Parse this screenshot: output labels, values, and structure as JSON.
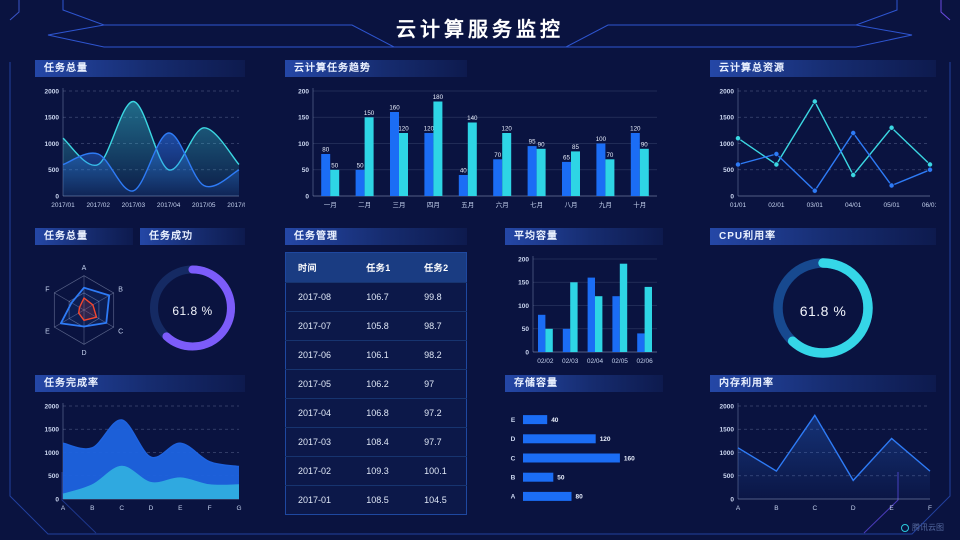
{
  "title": "云计算服务监控",
  "watermark": "腾讯云图",
  "colors": {
    "blue": "#1B6DF5",
    "cyan": "#2ED5E5",
    "line_blue": "#2E7BF6",
    "line_cyan": "#3BD7E2",
    "purple": "#7C5CFA",
    "red": "#F5472E",
    "frame_blue": "#2E55D0",
    "background": "#0A1340"
  },
  "panels": {
    "task_total_top": {
      "title": "任务总量"
    },
    "task_trend": {
      "title": "云计算任务趋势"
    },
    "total_resource": {
      "title": "云计算总资源"
    },
    "task_total_radar": {
      "title": "任务总量"
    },
    "task_success": {
      "title": "任务成功",
      "value": "61.8 %"
    },
    "task_manage": {
      "title": "任务管理"
    },
    "avg_capacity": {
      "title": "平均容量"
    },
    "cpu_usage": {
      "title": "CPU利用率",
      "value": "61.8 %"
    },
    "task_completion": {
      "title": "任务完成率"
    },
    "storage": {
      "title": "存储容量"
    },
    "memory": {
      "title": "内存利用率"
    }
  },
  "table": {
    "columns": [
      "时间",
      "任务1",
      "任务2"
    ],
    "rows": [
      [
        "2017-08",
        "106.7",
        "99.8"
      ],
      [
        "2017-07",
        "105.8",
        "98.7"
      ],
      [
        "2017-06",
        "106.1",
        "98.2"
      ],
      [
        "2017-05",
        "106.2",
        "97"
      ],
      [
        "2017-04",
        "106.8",
        "97.2"
      ],
      [
        "2017-03",
        "108.4",
        "97.7"
      ],
      [
        "2017-02",
        "109.3",
        "100.1"
      ],
      [
        "2017-01",
        "108.5",
        "104.5"
      ]
    ]
  },
  "chart_data": [
    {
      "id": "task-total-area",
      "type": "area",
      "smooth": true,
      "title": "任务总量",
      "x": [
        "2017/01",
        "2017/02",
        "2017/03",
        "2017/04",
        "2017/05",
        "2017/06"
      ],
      "ylim": [
        0,
        2000
      ],
      "yticks": [
        0,
        500,
        1000,
        1500,
        2000
      ],
      "grid": "dashed",
      "series": [
        {
          "name": "cyan",
          "color": "#3BD7E2",
          "fill_opacity": [
            0.45,
            0.05
          ],
          "values": [
            1100,
            600,
            1800,
            500,
            1300,
            600
          ]
        },
        {
          "name": "blue",
          "color": "#2E7BF6",
          "fill_opacity": [
            0.55,
            0.08
          ],
          "values": [
            600,
            800,
            100,
            1200,
            200,
            500
          ]
        }
      ]
    },
    {
      "id": "task-trend-bar",
      "type": "bar",
      "title": "云计算任务趋势",
      "categories": [
        "一月",
        "二月",
        "三月",
        "四月",
        "五月",
        "六月",
        "七月",
        "八月",
        "九月",
        "十月"
      ],
      "ylim": [
        0,
        200
      ],
      "yticks": [
        0,
        50,
        100,
        150,
        200
      ],
      "grid": "solid",
      "show_labels": true,
      "series": [
        {
          "name": "blue",
          "color": "#1B6DF5",
          "values": [
            80,
            50,
            160,
            120,
            40,
            70,
            95,
            65,
            100,
            120
          ]
        },
        {
          "name": "cyan",
          "color": "#2ED5E5",
          "values": [
            50,
            150,
            120,
            180,
            140,
            120,
            90,
            85,
            70,
            90
          ]
        }
      ]
    },
    {
      "id": "total-resource-line",
      "type": "line",
      "title": "云计算总资源",
      "x": [
        "01/01",
        "02/01",
        "03/01",
        "04/01",
        "05/01",
        "06/01"
      ],
      "ylim": [
        0,
        2000
      ],
      "yticks": [
        0,
        500,
        1000,
        1500,
        2000
      ],
      "grid": "dashed",
      "markers": true,
      "series": [
        {
          "name": "cyan",
          "color": "#3BD7E2",
          "values": [
            1100,
            600,
            1800,
            400,
            1300,
            600
          ]
        },
        {
          "name": "blue",
          "color": "#2E7BF6",
          "values": [
            600,
            800,
            100,
            1200,
            200,
            500
          ]
        }
      ]
    },
    {
      "id": "task-radar",
      "type": "radar",
      "title": "任务总量",
      "axes": [
        "A",
        "B",
        "C",
        "D",
        "E",
        "F"
      ],
      "max": 100,
      "series": [
        {
          "name": "blue",
          "color": "#2E7BF6",
          "values": [
            65,
            85,
            75,
            48,
            78,
            42
          ]
        },
        {
          "name": "red",
          "color": "#F5472E",
          "values": [
            35,
            30,
            42,
            30,
            18,
            15
          ]
        }
      ]
    },
    {
      "id": "success-donut",
      "type": "donut",
      "title": "任务成功",
      "value": 61.8,
      "color": "#7C5CFA",
      "track": "#152A63"
    },
    {
      "id": "avg-capacity-bar",
      "type": "bar",
      "title": "平均容量",
      "categories": [
        "02/02",
        "02/03",
        "02/04",
        "02/05",
        "02/06"
      ],
      "ylim": [
        0,
        200
      ],
      "yticks": [
        0,
        50,
        100,
        150,
        200
      ],
      "grid": "solid",
      "show_labels": false,
      "series": [
        {
          "name": "blue",
          "color": "#1B6DF5",
          "values": [
            80,
            50,
            160,
            120,
            40
          ]
        },
        {
          "name": "cyan",
          "color": "#2ED5E5",
          "values": [
            50,
            150,
            120,
            190,
            140
          ]
        }
      ]
    },
    {
      "id": "cpu-donut",
      "type": "donut",
      "title": "CPU利用率",
      "value": 61.8,
      "color": "#35D6E7",
      "track": "#17498F"
    },
    {
      "id": "completion-area",
      "type": "area",
      "smooth": true,
      "title": "任务完成率",
      "x": [
        "A",
        "B",
        "C",
        "D",
        "E",
        "F",
        "G"
      ],
      "ylim": [
        0,
        2000
      ],
      "yticks": [
        0,
        500,
        1000,
        1500,
        2000
      ],
      "grid": "dashed",
      "series": [
        {
          "name": "blue",
          "color": "#1E63E0",
          "solid": 0.95,
          "values": [
            1200,
            1100,
            1700,
            900,
            1200,
            800,
            700
          ]
        },
        {
          "name": "cyan",
          "color": "#2FA9E0",
          "solid": 1,
          "values": [
            100,
            300,
            700,
            350,
            450,
            300,
            300
          ]
        }
      ]
    },
    {
      "id": "storage-hbar",
      "type": "hbar",
      "title": "存储容量",
      "categories": [
        "E",
        "D",
        "C",
        "B",
        "A"
      ],
      "values": [
        40,
        120,
        160,
        50,
        80
      ],
      "max": 175,
      "color": "#1B6DF5"
    },
    {
      "id": "memory-line",
      "type": "line",
      "title": "内存利用率",
      "x": [
        "A",
        "B",
        "C",
        "D",
        "E",
        "F"
      ],
      "ylim": [
        0,
        2000
      ],
      "yticks": [
        0,
        500,
        1000,
        1500,
        2000
      ],
      "grid": "dashed",
      "markers": false,
      "series": [
        {
          "name": "blue",
          "color": "#2E7BF6",
          "fill_opacity": [
            0.3,
            0.03
          ],
          "values": [
            1100,
            600,
            1800,
            400,
            1300,
            600
          ]
        }
      ]
    }
  ]
}
